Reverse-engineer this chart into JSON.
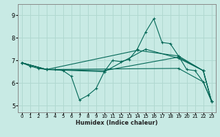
{
  "xlabel": "Humidex (Indice chaleur)",
  "bg_color": "#c8eae4",
  "grid_color": "#b0d8d0",
  "line_color": "#006655",
  "spine_color": "#888888",
  "xlim": [
    -0.5,
    23.5
  ],
  "ylim": [
    4.7,
    9.5
  ],
  "yticks": [
    5,
    6,
    7,
    8,
    9
  ],
  "xticks": [
    0,
    1,
    2,
    3,
    4,
    5,
    6,
    7,
    8,
    9,
    10,
    11,
    12,
    13,
    14,
    15,
    16,
    17,
    18,
    19,
    20,
    21,
    22,
    23
  ],
  "lines": [
    {
      "x": [
        0,
        1,
        2,
        3,
        4,
        5,
        6,
        7,
        8,
        9,
        10,
        11,
        12,
        13,
        14,
        15,
        16,
        17,
        18,
        19,
        20,
        21,
        22,
        23
      ],
      "y": [
        6.9,
        6.75,
        6.65,
        6.6,
        6.6,
        6.55,
        6.3,
        5.25,
        5.45,
        5.75,
        6.5,
        7.0,
        6.95,
        7.05,
        7.5,
        8.25,
        8.85,
        7.8,
        7.75,
        7.2,
        6.6,
        6.55,
        6.05,
        5.2
      ]
    },
    {
      "x": [
        0,
        3,
        19,
        22,
        23
      ],
      "y": [
        6.9,
        6.6,
        6.65,
        6.05,
        5.2
      ]
    },
    {
      "x": [
        0,
        3,
        10,
        19,
        22,
        23
      ],
      "y": [
        6.9,
        6.6,
        6.55,
        7.15,
        6.55,
        5.2
      ]
    },
    {
      "x": [
        0,
        3,
        14,
        19,
        22,
        23
      ],
      "y": [
        6.9,
        6.6,
        7.45,
        7.2,
        6.55,
        5.2
      ]
    },
    {
      "x": [
        0,
        3,
        10,
        15,
        19,
        22,
        23
      ],
      "y": [
        6.9,
        6.6,
        6.5,
        7.5,
        7.1,
        6.55,
        5.2
      ]
    }
  ]
}
